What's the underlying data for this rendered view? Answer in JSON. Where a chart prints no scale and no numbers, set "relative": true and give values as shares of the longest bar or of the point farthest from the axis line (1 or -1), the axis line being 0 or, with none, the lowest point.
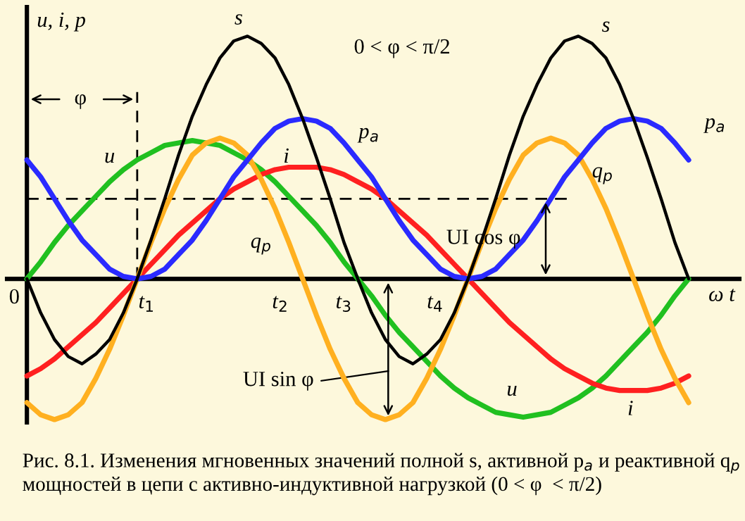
{
  "chart_data": {
    "type": "line",
    "relative": true,
    "ylabel": "u, i, p",
    "xlabel": "ω t",
    "categories": [
      null,
      null,
      null,
      null,
      null,
      null,
      null,
      null,
      null,
      null,
      null,
      null,
      null,
      null,
      null,
      null,
      null,
      null,
      null,
      null,
      null,
      null,
      null,
      null,
      null,
      null,
      null,
      null,
      null,
      null,
      null,
      null,
      null,
      null,
      null,
      null,
      null,
      null,
      null,
      null,
      null,
      null,
      null,
      null,
      null,
      null,
      null,
      null,
      null
    ],
    "series": [
      {
        "name": "s",
        "color": "#000000",
        "values": [
          0,
          -0.14,
          -0.25,
          -0.32,
          -0.35,
          -0.31,
          -0.25,
          -0.14,
          0,
          0.16,
          0.33,
          0.51,
          0.67,
          0.8,
          0.91,
          0.98,
          1.0,
          0.97,
          0.91,
          0.8,
          0.66,
          0.5,
          0.33,
          0.15,
          0,
          -0.14,
          -0.25,
          -0.32,
          -0.35,
          -0.31,
          -0.25,
          -0.14,
          0,
          0.16,
          0.33,
          0.51,
          0.67,
          0.8,
          0.91,
          0.98,
          1.0,
          0.97,
          0.91,
          0.8,
          0.66,
          0.5,
          0.33,
          0.15,
          0
        ]
      },
      {
        "name": "p$_{a}$",
        "color": "#2a2aff",
        "values": [
          0.49,
          0.42,
          0.33,
          0.24,
          0.16,
          0.1,
          0.04,
          0.01,
          0,
          0.01,
          0.04,
          0.1,
          0.16,
          0.24,
          0.33,
          0.42,
          0.49,
          0.56,
          0.62,
          0.65,
          0.66,
          0.65,
          0.62,
          0.56,
          0.49,
          0.42,
          0.33,
          0.24,
          0.16,
          0.1,
          0.04,
          0.01,
          0,
          0.01,
          0.04,
          0.1,
          0.16,
          0.24,
          0.33,
          0.42,
          0.49,
          0.56,
          0.62,
          0.65,
          0.66,
          0.65,
          0.62,
          0.56,
          0.49
        ]
      },
      {
        "name": "q$_{p}$",
        "color": "#ffb020",
        "values": [
          -0.51,
          -0.56,
          -0.58,
          -0.56,
          -0.51,
          -0.41,
          -0.29,
          -0.15,
          0,
          0.15,
          0.29,
          0.41,
          0.51,
          0.56,
          0.58,
          0.56,
          0.51,
          0.41,
          0.29,
          0.15,
          0,
          -0.15,
          -0.29,
          -0.41,
          -0.51,
          -0.56,
          -0.58,
          -0.56,
          -0.51,
          -0.41,
          -0.29,
          -0.15,
          0,
          0.15,
          0.29,
          0.41,
          0.51,
          0.56,
          0.58,
          0.56,
          0.51,
          0.41,
          0.29,
          0.15,
          0,
          -0.15,
          -0.29,
          -0.41,
          -0.51
        ]
      },
      {
        "name": "u",
        "color": "#20c020",
        "values": [
          0,
          0.07,
          0.15,
          0.22,
          0.28,
          0.34,
          0.4,
          0.45,
          0.49,
          0.52,
          0.55,
          0.56,
          0.57,
          0.56,
          0.55,
          0.52,
          0.49,
          0.45,
          0.4,
          0.34,
          0.28,
          0.22,
          0.15,
          0.07,
          0,
          -0.07,
          -0.15,
          -0.22,
          -0.28,
          -0.34,
          -0.4,
          -0.45,
          -0.49,
          -0.52,
          -0.55,
          -0.56,
          -0.57,
          -0.56,
          -0.55,
          -0.52,
          -0.49,
          -0.45,
          -0.4,
          -0.34,
          -0.28,
          -0.22,
          -0.15,
          -0.07,
          0
        ]
      },
      {
        "name": "i",
        "color": "#ff2020",
        "values": [
          -0.4,
          -0.37,
          -0.33,
          -0.28,
          -0.23,
          -0.18,
          -0.12,
          -0.06,
          0,
          0.06,
          0.12,
          0.18,
          0.23,
          0.28,
          0.33,
          0.37,
          0.4,
          0.43,
          0.45,
          0.46,
          0.46,
          0.46,
          0.45,
          0.43,
          0.4,
          0.37,
          0.33,
          0.28,
          0.23,
          0.18,
          0.12,
          0.06,
          0,
          -0.06,
          -0.12,
          -0.18,
          -0.23,
          -0.28,
          -0.33,
          -0.37,
          -0.4,
          -0.43,
          -0.45,
          -0.46,
          -0.46,
          -0.46,
          -0.45,
          -0.43,
          -0.4
        ]
      }
    ],
    "ref_lines": [
      {
        "axis": "y",
        "value": 0.33,
        "line_style": "dashed",
        "color": "#000000"
      }
    ],
    "annotations": [
      "0",
      "φ",
      "0 < φ < π/2",
      "t$_{1}$",
      "t$_{2}$",
      "t$_{3}$",
      "t$_{4}$",
      "UI cos φ",
      "UI sin φ",
      "Рис. 8.1. Изменения мгновенных значений полной s, активной p$_{a}$ и реактивной q$_{p}$ мощностей в цепи с активно-индуктивной нагрузкой (0 < φ  < π/2)"
    ],
    "legend": false,
    "marker": "none",
    "line_style": "solid"
  }
}
